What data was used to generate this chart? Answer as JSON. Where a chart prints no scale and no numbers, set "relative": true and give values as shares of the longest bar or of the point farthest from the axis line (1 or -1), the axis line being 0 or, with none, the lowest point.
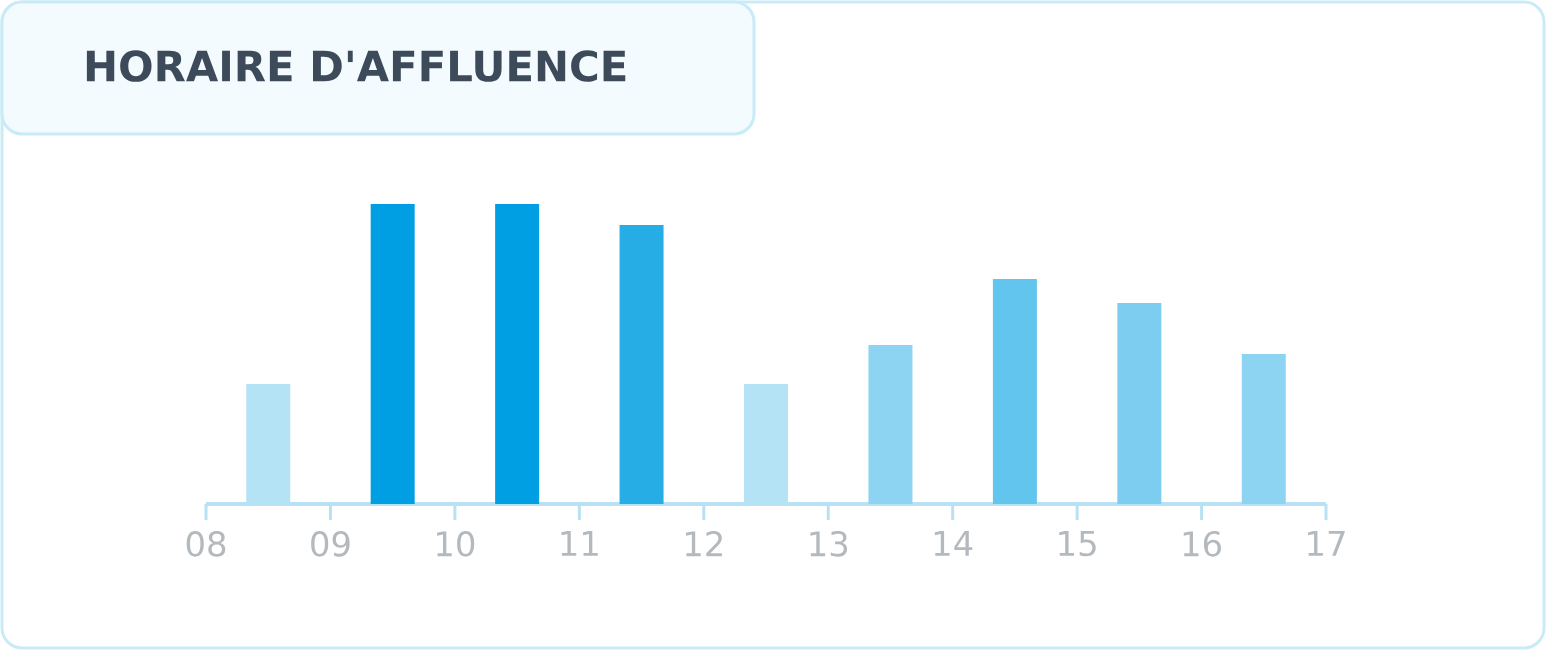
{
  "chart_data": {
    "type": "bar",
    "title": "HORAIRE D'AFFLUENCE",
    "relative": true,
    "x": [
      8.5,
      9.5,
      10.5,
      11.5,
      12.5,
      13.5,
      14.5,
      15.5,
      16.5
    ],
    "values": [
      0.4,
      1,
      1,
      0.93,
      0.4,
      0.53,
      0.75,
      0.67,
      0.5
    ],
    "colors": [
      "#b5e3f6",
      "#009fe3",
      "#009fe3",
      "#26ade6",
      "#b5e3f6",
      "#8dd3f2",
      "#62c5ee",
      "#7dcdf0",
      "#8dd3f2"
    ],
    "xlim": [
      8,
      17
    ],
    "xticks": [
      {
        "value": 8,
        "label": "08"
      },
      {
        "value": 9,
        "label": "09"
      },
      10,
      11,
      12,
      13,
      14,
      15,
      16,
      17
    ]
  }
}
